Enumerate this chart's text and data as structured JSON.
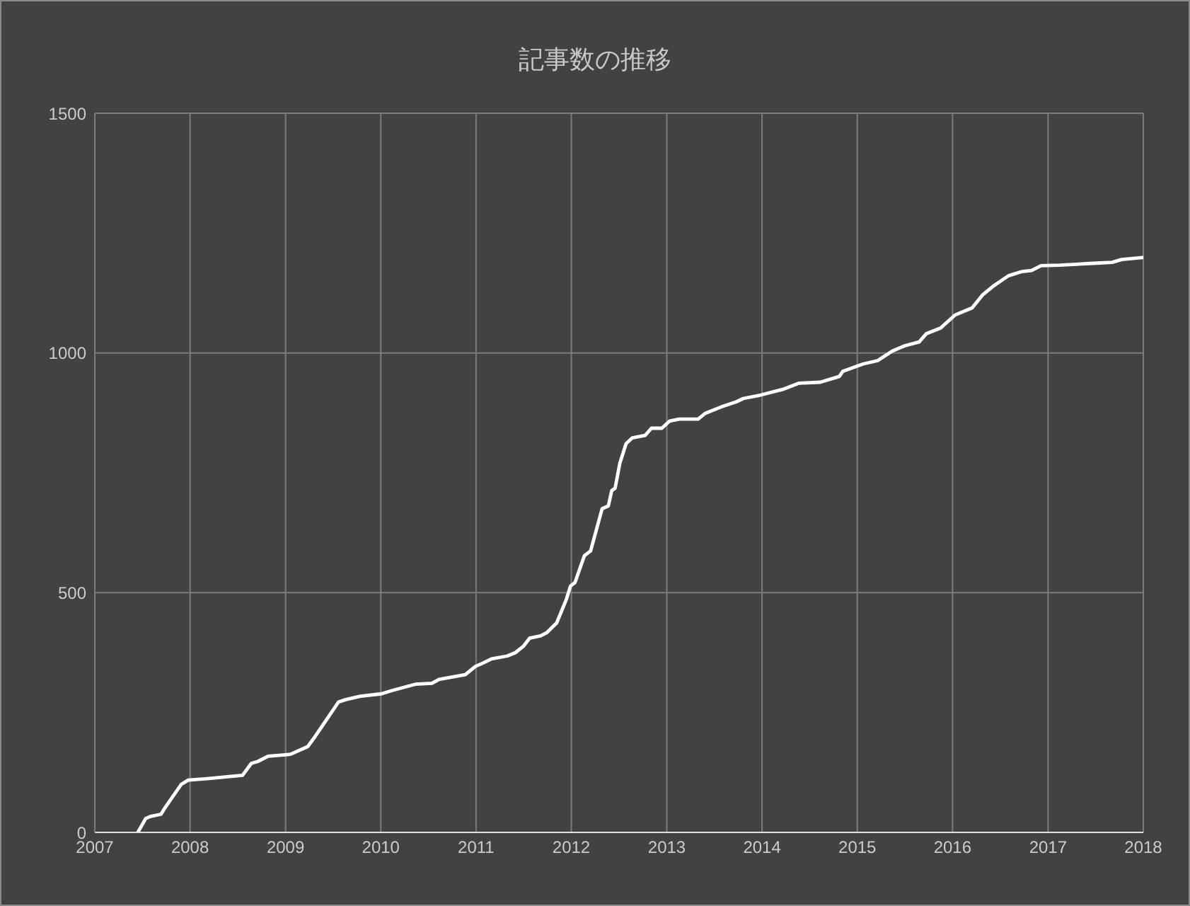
{
  "chart_data": {
    "type": "line",
    "title": "記事数の推移",
    "color": "#ffffff",
    "x": [
      "2007-06-15",
      "2007-07-15",
      "2007-08-01",
      "2007-09-12",
      "2007-09-29",
      "2007-11-28",
      "2007-12-25",
      "2008-03-06",
      "2008-07-20",
      "2008-08-23",
      "2008-09-17",
      "2008-10-26",
      "2009-01-01",
      "2009-01-20",
      "2009-03-27",
      "2009-04-23",
      "2009-07-23",
      "2009-08-20",
      "2009-10-15",
      "2010-01-03",
      "2010-02-14",
      "2010-05-13",
      "2010-07-16",
      "2010-08-12",
      "2010-11-21",
      "2010-12-29",
      "2011-01-27",
      "2011-03-01",
      "2011-05-01",
      "2011-06-01",
      "2011-07-01",
      "2011-07-25",
      "2011-09-05",
      "2011-09-30",
      "2011-11-06",
      "2011-12-13",
      "2011-12-29",
      "2012-01-15",
      "2012-02-20",
      "2012-03-15",
      "2012-04-28",
      "2012-05-22",
      "2012-06-04",
      "2012-06-17",
      "2012-07-05",
      "2012-07-29",
      "2012-08-22",
      "2012-10-10",
      "2012-11-03",
      "2012-12-13",
      "2013-01-12",
      "2013-02-17",
      "2013-05-01",
      "2013-05-28",
      "2013-07-31",
      "2013-09-24",
      "2013-10-21",
      "2013-12-25",
      "2014-03-21",
      "2014-05-23",
      "2014-08-12",
      "2014-10-24",
      "2014-11-07",
      "2015-01-23",
      "2015-03-20",
      "2015-05-15",
      "2015-07-02",
      "2015-08-26",
      "2015-09-22",
      "2015-11-16",
      "2016-01-10",
      "2016-02-14",
      "2016-03-16",
      "2016-04-25",
      "2016-06-09",
      "2016-08-02",
      "2016-09-24",
      "2016-10-30",
      "2016-12-05",
      "2017-02-15",
      "2017-06-23",
      "2017-09-04",
      "2017-10-10",
      "2017-12-28"
    ],
    "values": [
      0,
      29,
      33,
      38,
      53,
      100,
      109,
      112,
      119,
      144,
      148,
      159,
      162,
      163,
      179,
      199,
      272,
      277,
      284,
      289,
      296,
      309,
      311,
      319,
      329,
      346,
      353,
      362,
      368,
      375,
      388,
      405,
      410,
      417,
      437,
      486,
      514,
      521,
      577,
      587,
      675,
      681,
      713,
      718,
      770,
      811,
      823,
      828,
      843,
      843,
      858,
      862,
      862,
      874,
      888,
      898,
      905,
      912,
      924,
      937,
      939,
      951,
      962,
      977,
      984,
      1004,
      1015,
      1023,
      1040,
      1052,
      1079,
      1087,
      1094,
      1121,
      1141,
      1161,
      1170,
      1172,
      1182,
      1183,
      1187,
      1189,
      1195,
      1199
    ],
    "xlim": [
      "2007",
      "2018"
    ],
    "xticks": [
      "2007",
      "2008",
      "2009",
      "2010",
      "2011",
      "2012",
      "2013",
      "2014",
      "2015",
      "2016",
      "2017",
      "2018"
    ],
    "ylim": [
      0,
      1500
    ],
    "yticks": [
      0,
      500,
      1000,
      1500
    ],
    "grid": true
  }
}
